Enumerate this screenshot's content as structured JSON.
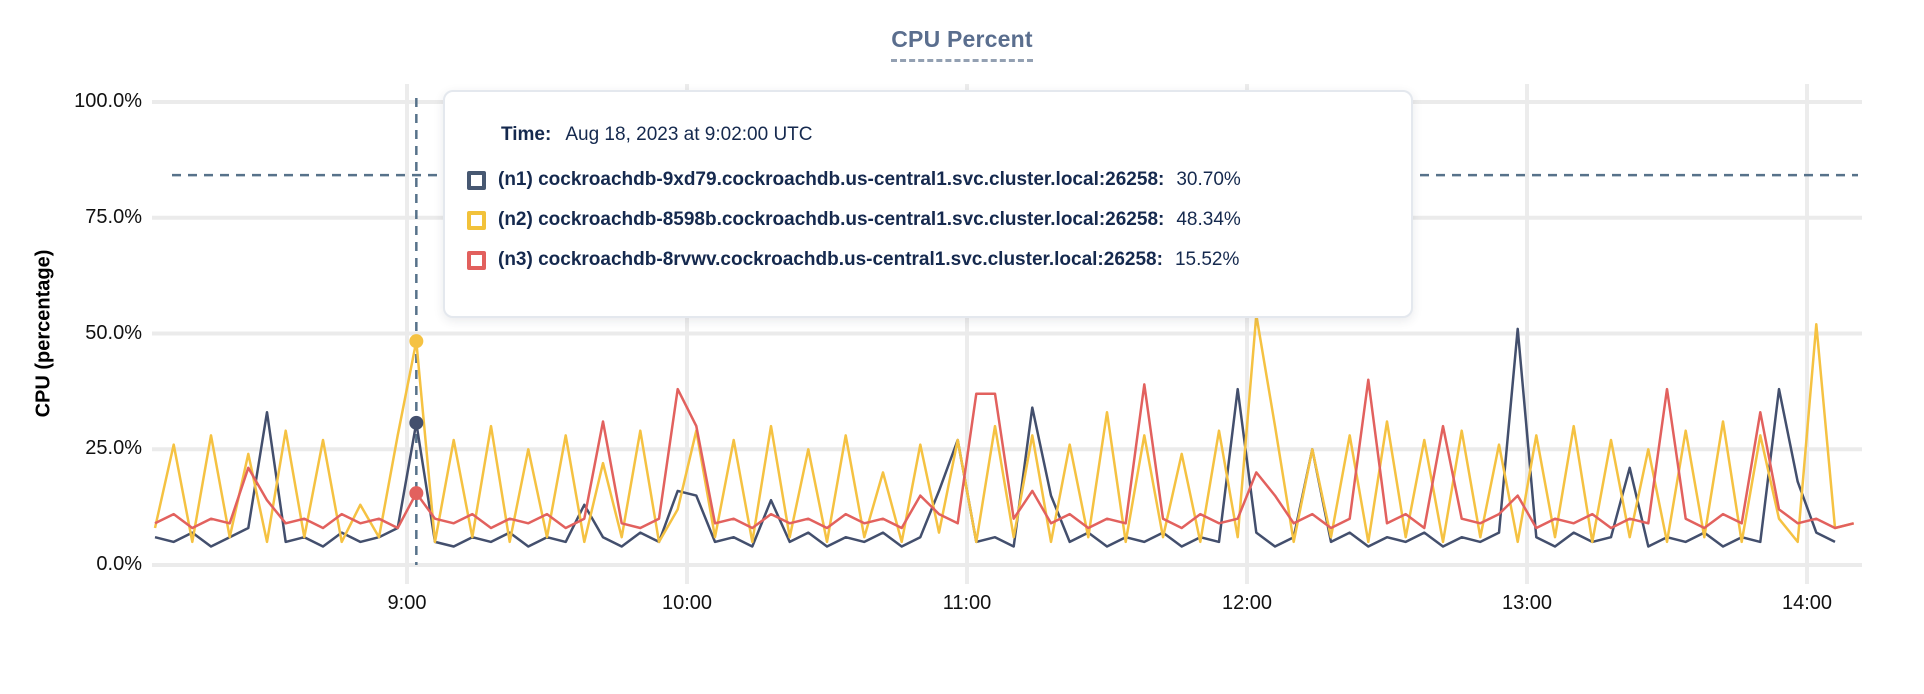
{
  "chart": {
    "title": "CPU Percent",
    "y_axis_title": "CPU (percentage)"
  },
  "tooltip": {
    "time_label": "Time:",
    "time_value": "Aug 18, 2023 at 9:02:00 UTC",
    "rows": [
      {
        "label": "(n1) cockroachdb-9xd79.cockroachdb.us-central1.svc.cluster.local:26258:",
        "value": "30.70%",
        "color": "#475872"
      },
      {
        "label": "(n2) cockroachdb-8598b.cockroachdb.us-central1.svc.cluster.local:26258:",
        "value": "48.34%",
        "color": "#f2c23a"
      },
      {
        "label": "(n3) cockroachdb-8rvwv.cockroachdb.us-central1.svc.cluster.local:26258:",
        "value": "15.52%",
        "color": "#e2605d"
      }
    ]
  },
  "chart_data": {
    "type": "line",
    "title": "CPU Percent",
    "xlabel": "",
    "ylabel": "CPU (percentage)",
    "ylim": [
      0,
      100
    ],
    "grid": true,
    "legend_position": "tooltip-overlay",
    "y_ticks": [
      {
        "value": 0,
        "label": "0.0%"
      },
      {
        "value": 25,
        "label": "25.0%"
      },
      {
        "value": 50,
        "label": "50.0%"
      },
      {
        "value": 75,
        "label": "75.0%"
      },
      {
        "value": 100,
        "label": "100.0%"
      }
    ],
    "x_ticks": [
      {
        "minute": 60,
        "label": "9:00"
      },
      {
        "minute": 120,
        "label": "10:00"
      },
      {
        "minute": 180,
        "label": "11:00"
      },
      {
        "minute": 240,
        "label": "12:00"
      },
      {
        "minute": 300,
        "label": "13:00"
      },
      {
        "minute": 360,
        "label": "14:00"
      }
    ],
    "x_start_minute_after_8am": 6,
    "x_step_minutes": 4,
    "guideline_percent": 84.2,
    "hover": {
      "minute": 62,
      "time": "Aug 18, 2023 at 9:02:00 UTC",
      "values": [
        30.7,
        48.34,
        15.52
      ]
    },
    "series": [
      {
        "name": "(n1) cockroachdb-9xd79.cockroachdb.us-central1.svc.cluster.local:26258",
        "color": "#434f6d",
        "values": [
          6,
          5,
          7,
          4,
          6,
          8,
          33,
          5,
          6,
          4,
          7,
          5,
          6,
          8,
          30.7,
          5,
          4,
          6,
          5,
          7,
          4,
          6,
          5,
          13,
          6,
          4,
          7,
          5,
          16,
          15,
          5,
          6,
          4,
          14,
          5,
          7,
          4,
          6,
          5,
          7,
          4,
          6,
          16,
          27,
          5,
          6,
          4,
          34,
          15,
          5,
          7,
          4,
          6,
          5,
          7,
          4,
          6,
          5,
          38,
          7,
          4,
          6,
          25,
          5,
          7,
          4,
          6,
          5,
          7,
          4,
          6,
          5,
          7,
          51,
          6,
          4,
          7,
          5,
          6,
          21,
          4,
          6,
          5,
          7,
          4,
          6,
          5,
          38,
          18,
          7,
          5
        ]
      },
      {
        "name": "(n2) cockroachdb-8598b.cockroachdb.us-central1.svc.cluster.local:26258",
        "color": "#f5c242",
        "values": [
          8,
          26,
          5,
          28,
          6,
          24,
          5,
          29,
          6,
          27,
          5,
          13,
          6,
          28,
          48.34,
          5,
          27,
          6,
          30,
          5,
          25,
          6,
          28,
          5,
          22,
          6,
          29,
          5,
          12,
          29,
          6,
          27,
          5,
          30,
          6,
          25,
          5,
          28,
          6,
          20,
          5,
          26,
          7,
          27,
          5,
          30,
          6,
          28,
          5,
          26,
          6,
          33,
          5,
          28,
          6,
          24,
          5,
          29,
          6,
          54,
          30,
          5,
          25,
          6,
          28,
          5,
          31,
          6,
          27,
          5,
          29,
          6,
          26,
          5,
          28,
          6,
          30,
          5,
          27,
          6,
          25,
          5,
          29,
          6,
          31,
          5,
          28,
          10,
          5,
          52,
          8,
          9
        ]
      },
      {
        "name": "(n3) cockroachdb-8rvwv.cockroachdb.us-central1.svc.cluster.local:26258",
        "color": "#e2615e",
        "values": [
          9,
          11,
          8,
          10,
          9,
          21,
          14,
          9,
          10,
          8,
          11,
          9,
          10,
          8,
          15.52,
          10,
          9,
          11,
          8,
          10,
          9,
          11,
          8,
          10,
          31,
          9,
          8,
          10,
          38,
          30,
          9,
          10,
          8,
          11,
          9,
          10,
          8,
          11,
          9,
          10,
          8,
          15,
          11,
          9,
          37,
          37,
          10,
          16,
          9,
          11,
          8,
          10,
          9,
          39,
          10,
          8,
          11,
          9,
          10,
          20,
          15,
          9,
          11,
          8,
          10,
          40,
          9,
          11,
          8,
          30,
          10,
          9,
          11,
          15,
          8,
          10,
          9,
          11,
          8,
          10,
          9,
          38,
          10,
          8,
          11,
          9,
          33,
          12,
          9,
          10,
          8,
          9
        ]
      }
    ]
  }
}
